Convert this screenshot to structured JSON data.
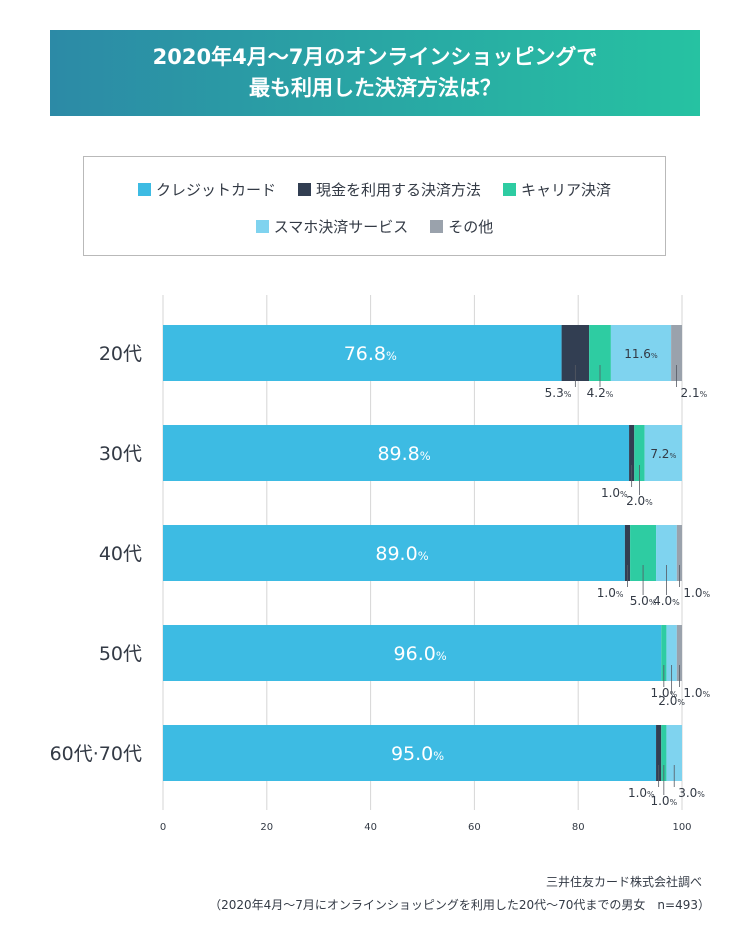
{
  "title": {
    "line1": "2020年4月〜7月のオンラインショッピングで",
    "line2": "最も利用した決済方法は？"
  },
  "legend": [
    {
      "label": "クレジットカード",
      "color": "#3dbbe3"
    },
    {
      "label": "現金を利用する決済方法",
      "color": "#323e52"
    },
    {
      "label": "キャリア決済",
      "color": "#2ecca2"
    },
    {
      "label": "スマホ決済サービス",
      "color": "#7fd3ef"
    },
    {
      "label": "その他",
      "color": "#9aa2ac"
    }
  ],
  "chart_data": {
    "type": "bar",
    "orientation": "horizontal",
    "stacked": true,
    "categories": [
      "20代",
      "30代",
      "40代",
      "50代",
      "60代·70代"
    ],
    "series": [
      {
        "name": "クレジットカード",
        "color": "#3dbbe3",
        "values": [
          76.8,
          89.8,
          89.0,
          96.0,
          95.0
        ]
      },
      {
        "name": "現金を利用する決済方法",
        "color": "#323e52",
        "values": [
          5.3,
          1.0,
          1.0,
          0,
          1.0
        ]
      },
      {
        "name": "キャリア決済",
        "color": "#2ecca2",
        "values": [
          4.2,
          2.0,
          5.0,
          1.0,
          1.0
        ]
      },
      {
        "name": "スマホ決済サービス",
        "color": "#7fd3ef",
        "values": [
          11.6,
          7.2,
          4.0,
          2.0,
          3.0
        ]
      },
      {
        "name": "その他",
        "color": "#9aa2ac",
        "values": [
          2.1,
          0,
          1.0,
          1.0,
          0
        ]
      }
    ],
    "xlim": [
      0,
      100
    ],
    "xticks": [
      0,
      20,
      40,
      60,
      80,
      100
    ],
    "grid": true,
    "unit": "%",
    "labels": [
      {
        "row": 0,
        "series": 0,
        "text": "76.8",
        "unit": "%",
        "pos": "inside"
      },
      {
        "row": 0,
        "series": 3,
        "text": "11.6",
        "unit": "%",
        "pos": "inside"
      },
      {
        "row": 0,
        "series": 1,
        "text": "5.3",
        "unit": "%",
        "pos": "callout",
        "level": 1
      },
      {
        "row": 0,
        "series": 2,
        "text": "4.2",
        "unit": "%",
        "pos": "callout",
        "level": 1
      },
      {
        "row": 0,
        "series": 4,
        "text": "2.1",
        "unit": "%",
        "pos": "callout",
        "level": 1
      },
      {
        "row": 1,
        "series": 0,
        "text": "89.8",
        "unit": "%",
        "pos": "inside"
      },
      {
        "row": 1,
        "series": 3,
        "text": "7.2",
        "unit": "%",
        "pos": "inside"
      },
      {
        "row": 1,
        "series": 1,
        "text": "1.0",
        "unit": "%",
        "pos": "callout",
        "level": 1
      },
      {
        "row": 1,
        "series": 2,
        "text": "2.0",
        "unit": "%",
        "pos": "callout",
        "level": 2
      },
      {
        "row": 2,
        "series": 0,
        "text": "89.0",
        "unit": "%",
        "pos": "inside"
      },
      {
        "row": 2,
        "series": 1,
        "text": "1.0",
        "unit": "%",
        "pos": "callout",
        "level": 1
      },
      {
        "row": 2,
        "series": 2,
        "text": "5.0",
        "unit": "%",
        "pos": "callout",
        "level": 2
      },
      {
        "row": 2,
        "series": 3,
        "text": "4.0",
        "unit": "%",
        "pos": "callout",
        "level": 2
      },
      {
        "row": 2,
        "series": 4,
        "text": "1.0",
        "unit": "%",
        "pos": "callout",
        "level": 1
      },
      {
        "row": 3,
        "series": 0,
        "text": "96.0",
        "unit": "%",
        "pos": "inside"
      },
      {
        "row": 3,
        "series": 2,
        "text": "1.0",
        "unit": "%",
        "pos": "callout",
        "level": 1
      },
      {
        "row": 3,
        "series": 3,
        "text": "2.0",
        "unit": "%",
        "pos": "callout",
        "level": 2
      },
      {
        "row": 3,
        "series": 4,
        "text": "1.0",
        "unit": "%",
        "pos": "callout",
        "level": 1
      },
      {
        "row": 4,
        "series": 0,
        "text": "95.0",
        "unit": "%",
        "pos": "inside"
      },
      {
        "row": 4,
        "series": 1,
        "text": "1.0",
        "unit": "%",
        "pos": "callout",
        "level": 1
      },
      {
        "row": 4,
        "series": 2,
        "text": "1.0",
        "unit": "%",
        "pos": "callout",
        "level": 2
      },
      {
        "row": 4,
        "series": 3,
        "text": "3.0",
        "unit": "%",
        "pos": "callout",
        "level": 1
      }
    ]
  },
  "source": {
    "line1": "三井住友カード株式会社調べ",
    "line2": "（2020年4月〜7月にオンラインショッピングを利用した20代〜70代までの男女　n=493）"
  }
}
